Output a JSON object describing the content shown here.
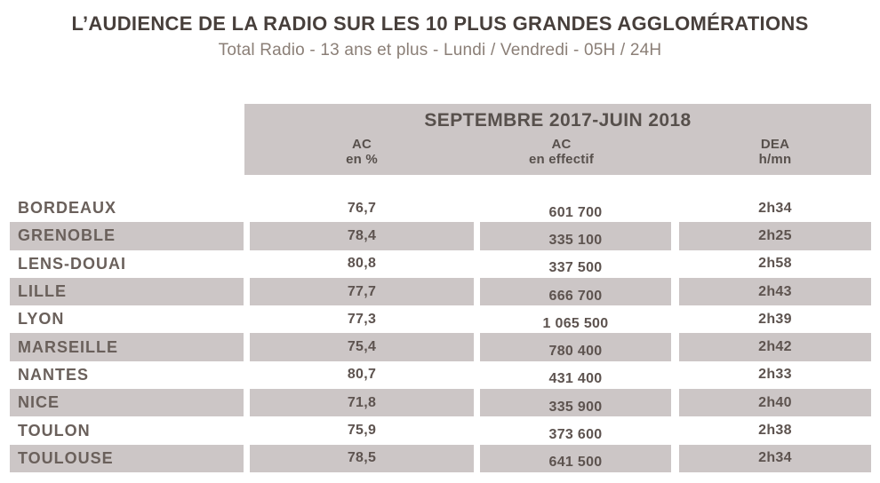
{
  "title": "L’AUDIENCE DE LA RADIO SUR LES 10 PLUS GRANDES AGGLOMÉRATIONS",
  "subtitle": "Total Radio - 13 ans et plus - Lundi / Vendredi - 05H / 24H",
  "table": {
    "period_header": "SEPTEMBRE 2017-JUIN 2018",
    "columns": [
      {
        "l1": "AC",
        "l2": "en %"
      },
      {
        "l1": "AC",
        "l2": "en effectif"
      },
      {
        "l1": "DEA",
        "l2": "h/mn"
      }
    ],
    "rows": [
      {
        "city": "BORDEAUX",
        "ac_pct": "76,7",
        "ac_eff": "601 700",
        "dea": "2h34"
      },
      {
        "city": "GRENOBLE",
        "ac_pct": "78,4",
        "ac_eff": "335 100",
        "dea": "2h25"
      },
      {
        "city": "LENS-DOUAI",
        "ac_pct": "80,8",
        "ac_eff": "337 500",
        "dea": "2h58"
      },
      {
        "city": "LILLE",
        "ac_pct": "77,7",
        "ac_eff": "666 700",
        "dea": "2h43"
      },
      {
        "city": "LYON",
        "ac_pct": "77,3",
        "ac_eff": "1 065 500",
        "dea": "2h39"
      },
      {
        "city": "MARSEILLE",
        "ac_pct": "75,4",
        "ac_eff": "780 400",
        "dea": "2h42"
      },
      {
        "city": "NANTES",
        "ac_pct": "80,7",
        "ac_eff": "431 400",
        "dea": "2h33"
      },
      {
        "city": "NICE",
        "ac_pct": "71,8",
        "ac_eff": "335 900",
        "dea": "2h40"
      },
      {
        "city": "TOULON",
        "ac_pct": "75,9",
        "ac_eff": "373 600",
        "dea": "2h38"
      },
      {
        "city": "TOULOUSE",
        "ac_pct": "78,5",
        "ac_eff": "641 500",
        "dea": "2h34"
      }
    ]
  },
  "colors": {
    "band": "#ccc6c6",
    "title_text": "#473f3b",
    "subtitle_text": "#8b7f77",
    "header_text": "#57504c",
    "city_text": "#6a605b",
    "value_text": "#5d534f"
  }
}
